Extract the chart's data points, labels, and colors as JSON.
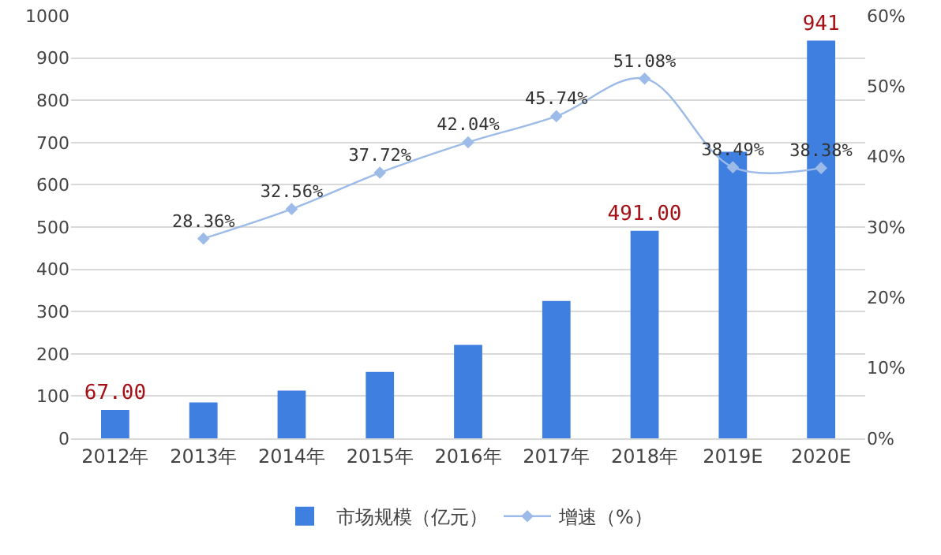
{
  "chart_data": {
    "type": "bar",
    "categories": [
      "2012年",
      "2013年",
      "2014年",
      "2015年",
      "2016年",
      "2017年",
      "2018年",
      "2019E",
      "2020E"
    ],
    "series": [
      {
        "name": "市场规模（亿元）",
        "color": "#3f7fdf",
        "values": [
          67,
          85,
          113,
          157,
          221,
          325,
          491,
          678,
          941
        ],
        "value_labels": [
          "67.00",
          null,
          null,
          null,
          null,
          null,
          "491.00",
          null,
          "941"
        ]
      },
      {
        "name": "增速（%）",
        "type": "line",
        "axis": "y2",
        "color": "#9dbbe8",
        "marker": "diamond",
        "values": [
          null,
          28.36,
          32.56,
          37.72,
          42.04,
          45.74,
          51.08,
          38.49,
          38.38
        ],
        "value_labels": [
          null,
          "28.36%",
          "32.56%",
          "37.72%",
          "42.04%",
          "45.74%",
          "51.08%",
          "38.49%",
          "38.38%"
        ]
      }
    ],
    "ylim": [
      0,
      1000
    ],
    "yticks": [
      0,
      100,
      200,
      300,
      400,
      500,
      600,
      700,
      800,
      900,
      1000
    ],
    "y2lim": [
      0,
      60
    ],
    "y2ticks": [
      {
        "value": 0,
        "label": "0%"
      },
      {
        "value": 10,
        "label": "10%"
      },
      {
        "value": 20,
        "label": "20%"
      },
      {
        "value": 30,
        "label": "30%"
      },
      {
        "value": 40,
        "label": "40%"
      },
      {
        "value": 50,
        "label": "50%"
      },
      {
        "value": 60,
        "label": "60%"
      }
    ],
    "grid": "y",
    "legend": "bottom"
  }
}
